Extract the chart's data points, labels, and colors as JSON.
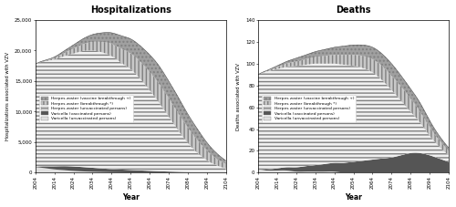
{
  "years": [
    2004,
    2009,
    2014,
    2019,
    2024,
    2029,
    2034,
    2039,
    2044,
    2049,
    2054,
    2059,
    2064,
    2069,
    2074,
    2079,
    2084,
    2089,
    2094,
    2099,
    2104
  ],
  "hosp": {
    "varicella_unvax": [
      900,
      750,
      550,
      420,
      300,
      220,
      160,
      120,
      90,
      70,
      55,
      45,
      38,
      32,
      28,
      24,
      20,
      16,
      12,
      10,
      8
    ],
    "varicella_vax": [
      100,
      300,
      500,
      650,
      720,
      700,
      650,
      580,
      510,
      450,
      390,
      330,
      270,
      210,
      160,
      120,
      80,
      55,
      35,
      22,
      15
    ],
    "hz_unvax": [
      16800,
      17200,
      17500,
      18000,
      18500,
      19000,
      19200,
      19000,
      18500,
      17500,
      16500,
      15000,
      13200,
      11200,
      9000,
      6800,
      4800,
      3200,
      2000,
      1200,
      700
    ],
    "hz_breakthrough": [
      0,
      100,
      250,
      500,
      800,
      1100,
      1400,
      1700,
      2000,
      2300,
      2600,
      2800,
      3000,
      3100,
      3000,
      2800,
      2500,
      2100,
      1600,
      1100,
      700
    ],
    "hz_vaccine_bt": [
      0,
      50,
      150,
      350,
      600,
      900,
      1200,
      1500,
      1800,
      2100,
      2350,
      2600,
      2800,
      2900,
      2800,
      2600,
      2200,
      1800,
      1300,
      900,
      550
    ]
  },
  "deaths": {
    "varicella_unvax": [
      2,
      2,
      2,
      2,
      1,
      1,
      1,
      1,
      1,
      0,
      0,
      0,
      0,
      0,
      0,
      0,
      0,
      0,
      0,
      0,
      0
    ],
    "varicella_vax": [
      0,
      1,
      2,
      3,
      4,
      5,
      6,
      7,
      8,
      9,
      10,
      11,
      12,
      13,
      14,
      16,
      18,
      18,
      16,
      13,
      10
    ],
    "hz_unvax": [
      88,
      90,
      91,
      92,
      93,
      93,
      93,
      92,
      91,
      90,
      88,
      85,
      80,
      72,
      62,
      50,
      38,
      28,
      18,
      11,
      6
    ],
    "hz_breakthrough": [
      0,
      1,
      2,
      3,
      4,
      5,
      6,
      7,
      8,
      9,
      10,
      11,
      12,
      13,
      13,
      13,
      12,
      10,
      8,
      6,
      4
    ],
    "hz_vaccine_bt": [
      0,
      0,
      1,
      2,
      3,
      4,
      5,
      6,
      7,
      8,
      9,
      10,
      11,
      11,
      11,
      10,
      9,
      8,
      6,
      4,
      3
    ]
  },
  "colors": {
    "varicella_unvax": "#e0e0e0",
    "varicella_vax": "#555555",
    "hz_unvax": "#f0f0f0",
    "hz_breakthrough": "#c8c8c8",
    "hz_vaccine_bt": "#a0a0a0"
  },
  "hatch": {
    "varicella_unvax": "",
    "varicella_vax": "",
    "hz_unvax": "----",
    "hz_breakthrough": "||||",
    "hz_vaccine_bt": "...."
  },
  "legend_labels": {
    "hz_vaccine_bt": "Herpes zoster (vaccine breakthrough +)",
    "hz_breakthrough": "Herpes zoster (breakthrough *)",
    "hz_unvax": "Herpes zoster (unvaccinated persons)",
    "varicella_vax": "Varicella (vaccinated persons)",
    "varicella_unvax": "Varicella (unvaccinated persons)"
  },
  "hosp_title": "Hospitalizations",
  "deaths_title": "Deaths",
  "hosp_ylabel": "Hospitalizations associated with VZV",
  "deaths_ylabel": "Deaths associated with VZV",
  "xlabel": "Year",
  "hosp_ylim": [
    0,
    25000
  ],
  "deaths_ylim": [
    0,
    140
  ],
  "hosp_yticks": [
    0,
    5000,
    10000,
    15000,
    20000,
    25000
  ],
  "deaths_yticks": [
    0,
    20,
    40,
    60,
    80,
    100,
    120,
    140
  ],
  "xticks": [
    2004,
    2014,
    2024,
    2034,
    2044,
    2054,
    2064,
    2074,
    2084,
    2094,
    2104
  ]
}
